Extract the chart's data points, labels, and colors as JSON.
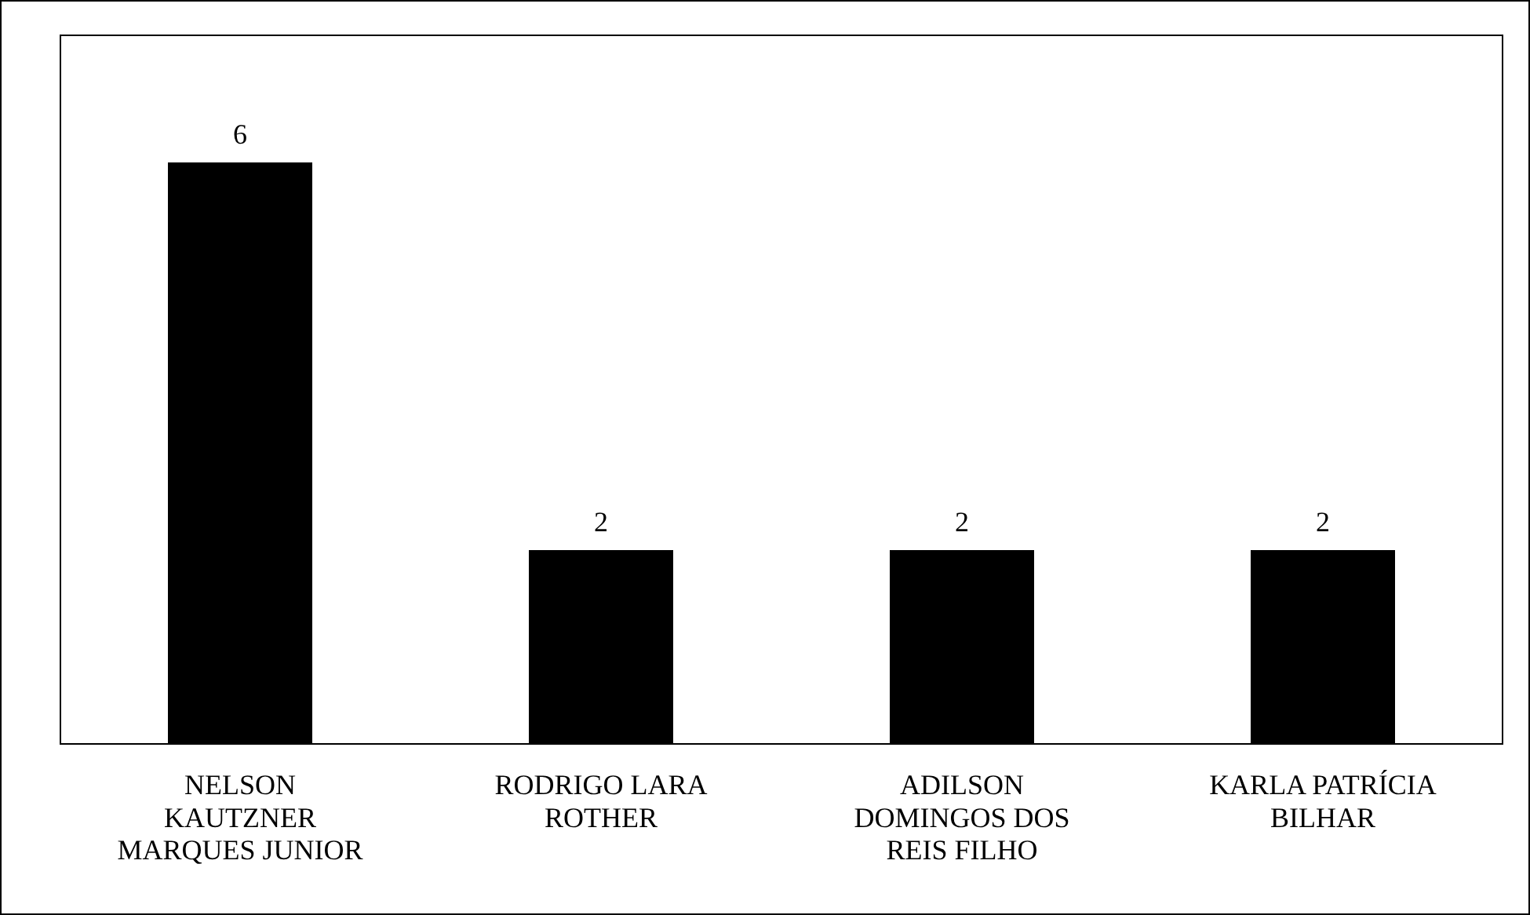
{
  "chart_data": {
    "type": "bar",
    "categories": [
      "NELSON KAUTZNER MARQUES JUNIOR",
      "RODRIGO LARA ROTHER",
      "ADILSON DOMINGOS DOS REIS FILHO",
      "KARLA PATRÍCIA BILHAR"
    ],
    "values": [
      6,
      2,
      2,
      2
    ],
    "color": "#000000",
    "data_labels": true,
    "tick_labels": "x"
  }
}
